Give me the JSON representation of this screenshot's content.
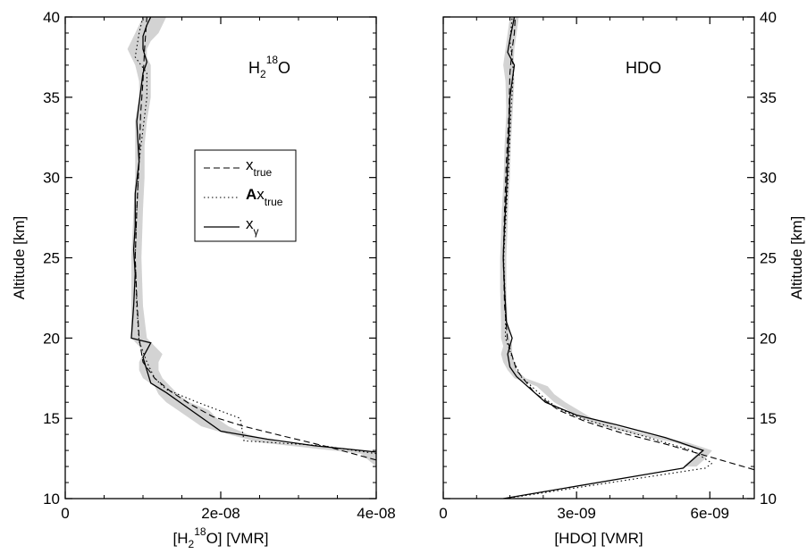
{
  "chart_data": [
    {
      "type": "line",
      "panel_label": {
        "main": "H",
        "sub": "2",
        "sup": "18",
        "tail": "O"
      },
      "xlabel": {
        "pre": "[H",
        "sub": "2",
        "sup": "18",
        "post": "O] [VMR]"
      },
      "ylabel": "Altitude [km]",
      "xlim": [
        0,
        4e-08
      ],
      "ylim": [
        10,
        40
      ],
      "xticks": [
        0,
        2e-08,
        4e-08
      ],
      "xtick_labels": [
        "0",
        "2e-08",
        "4e-08"
      ],
      "yticks": [
        10,
        15,
        20,
        25,
        30,
        35,
        40
      ],
      "ytick_labels": [
        "10",
        "15",
        "20",
        "25",
        "30",
        "35",
        "40"
      ],
      "legend": [
        {
          "name": "x",
          "sub": "true",
          "bold_prefix": "",
          "style": "dashed"
        },
        {
          "name": "x",
          "sub": "true",
          "bold_prefix": "A",
          "style": "dotted"
        },
        {
          "name": "x",
          "sub": "γ",
          "bold_prefix": "",
          "style": "solid"
        }
      ],
      "uncertainty_band": {
        "y": [
          10.5,
          12,
          12.8,
          13.5,
          14,
          14.5,
          15,
          15.5,
          16,
          16.5,
          17,
          17.5,
          18,
          18.5,
          19,
          19.5,
          20,
          22,
          25,
          28,
          30,
          32,
          33.5,
          35,
          36,
          37,
          37.5,
          38,
          38.5,
          39,
          39.5,
          40
        ],
        "lower": [
          4.2e-08,
          4e-08,
          3.8e-08,
          2.5e-08,
          2.1e-08,
          1.75e-08,
          1.6e-08,
          1.45e-08,
          1.3e-08,
          1.2e-08,
          1.15e-08,
          1e-08,
          9.5e-09,
          9.5e-09,
          1e-08,
          9.5e-09,
          8.5e-09,
          8.5e-09,
          8.5e-09,
          8.8e-09,
          9e-09,
          9e-09,
          9e-09,
          9.5e-09,
          9.5e-09,
          9e-09,
          8.5e-09,
          8e-09,
          8.5e-09,
          9e-09,
          9.5e-09,
          1e-08
        ],
        "upper": [
          4.2e-08,
          4.2e-08,
          4.2e-08,
          2.75e-08,
          2.35e-08,
          2.1e-08,
          1.95e-08,
          1.85e-08,
          1.6e-08,
          1.45e-08,
          1.35e-08,
          1.25e-08,
          1.2e-08,
          1.2e-08,
          1.25e-08,
          1.15e-08,
          1.05e-08,
          1e-08,
          9.8e-09,
          1e-08,
          1.02e-08,
          1.02e-08,
          1.05e-08,
          1.1e-08,
          1.1e-08,
          1.1e-08,
          1.05e-08,
          1.05e-08,
          1.1e-08,
          1.2e-08,
          1.25e-08,
          1.3e-08
        ]
      },
      "series": [
        {
          "label": "x_true",
          "style": "dashed",
          "x": [
            4e-08,
            3.4e-08,
            2.8e-08,
            2.3e-08,
            1.9e-08,
            1.6e-08,
            1.35e-08,
            1.15e-08,
            1e-08,
            9.5e-09,
            9.2e-09,
            9e-09,
            9.2e-09,
            9.5e-09,
            9.7e-09,
            1e-08,
            1.02e-08,
            1.05e-08
          ],
          "y": [
            12.4,
            13.2,
            13.9,
            14.5,
            15.1,
            15.9,
            16.7,
            17.5,
            18.5,
            20,
            22.5,
            25,
            28,
            31,
            34,
            36,
            38,
            40
          ]
        },
        {
          "label": "Ax_true",
          "style": "dotted",
          "x": [
            4e-08,
            3.3e-08,
            2.3e-08,
            2.25e-08,
            1.7e-08,
            1.3e-08,
            1.15e-08,
            1.05e-08,
            9.5e-09,
            9.2e-09,
            9e-09,
            9.2e-09,
            9.5e-09,
            1.05e-08,
            1.05e-08,
            9e-09,
            9.5e-09,
            1e-08
          ],
          "y": [
            12.8,
            13.3,
            13.6,
            15.0,
            16.0,
            16.8,
            17.5,
            18.5,
            19.8,
            22,
            25,
            28,
            31,
            35,
            36.5,
            37.5,
            39,
            40
          ]
        },
        {
          "label": "x_gamma",
          "style": "solid",
          "x": [
            4e-08,
            3.2e-08,
            2.6e-08,
            2e-08,
            1.65e-08,
            1.3e-08,
            1.1e-08,
            1.05e-08,
            1e-08,
            1.1e-08,
            8.5e-09,
            8.8e-09,
            9e-09,
            8.8e-09,
            9e-09,
            9e-09,
            9.5e-09,
            9.2e-09,
            9.6e-09,
            1e-08,
            1.05e-08,
            1e-08,
            1e-08,
            1.05e-08,
            1.1e-08
          ],
          "y": [
            12.9,
            13.3,
            13.7,
            14.2,
            15.4,
            16.6,
            17.2,
            18.0,
            18.8,
            19.7,
            20.0,
            22,
            24,
            25.5,
            27,
            29,
            31,
            33.5,
            35,
            36.5,
            37.2,
            38,
            38.8,
            39.5,
            40
          ]
        }
      ]
    },
    {
      "type": "line",
      "panel_label": {
        "main": "HDO"
      },
      "xlabel": {
        "pre": "[HDO] [VMR]"
      },
      "ylabel": "Altitude [km]",
      "xlim": [
        0,
        7e-09
      ],
      "ylim": [
        10,
        40
      ],
      "xticks": [
        0,
        3e-09,
        6e-09
      ],
      "xtick_labels": [
        "0",
        "3e-09",
        "6e-09"
      ],
      "yticks": [
        10,
        15,
        20,
        25,
        30,
        35,
        40
      ],
      "ytick_labels": [
        "10",
        "15",
        "20",
        "25",
        "30",
        "35",
        "40"
      ],
      "uncertainty_band": {
        "y": [
          12,
          12.5,
          13,
          13.5,
          14,
          14.5,
          15,
          15.5,
          16,
          16.5,
          17,
          17.5,
          18,
          18.5,
          19,
          19.5,
          20,
          21,
          23,
          25,
          28,
          30,
          32,
          34,
          36,
          37,
          38,
          39,
          40
        ],
        "lower": [
          5.4e-09,
          5.6e-09,
          5.8e-09,
          5.2e-09,
          4.3e-09,
          3.6e-09,
          3.1e-09,
          2.8e-09,
          2.5e-09,
          2.3e-09,
          2.1e-09,
          1.6e-09,
          1.45e-09,
          1.35e-09,
          1.3e-09,
          1.35e-09,
          1.3e-09,
          1.3e-09,
          1.28e-09,
          1.28e-09,
          1.32e-09,
          1.36e-09,
          1.38e-09,
          1.42e-09,
          1.4e-09,
          1.35e-09,
          1.4e-09,
          1.45e-09,
          1.5e-09
        ],
        "upper": [
          5.7e-09,
          5.9e-09,
          6.05e-09,
          5.5e-09,
          4.6e-09,
          3.9e-09,
          3.35e-09,
          3.05e-09,
          2.75e-09,
          2.5e-09,
          2.35e-09,
          1.85e-09,
          1.65e-09,
          1.6e-09,
          1.55e-09,
          1.55e-09,
          1.5e-09,
          1.45e-09,
          1.42e-09,
          1.42e-09,
          1.46e-09,
          1.5e-09,
          1.52e-09,
          1.56e-09,
          1.6e-09,
          1.58e-09,
          1.6e-09,
          1.65e-09,
          1.7e-09
        ]
      },
      "series": [
        {
          "label": "x_true",
          "style": "dashed",
          "x": [
            7e-09,
            6e-09,
            5e-09,
            4e-09,
            3.2e-09,
            2.6e-09,
            2.05e-09,
            1.65e-09,
            1.45e-09,
            1.38e-09,
            1.35e-09,
            1.38e-09,
            1.42e-09,
            1.48e-09,
            1.5e-09,
            1.55e-09,
            1.6e-09,
            1.62e-09
          ],
          "y": [
            11.8,
            12.6,
            13.4,
            14.1,
            14.8,
            15.5,
            16.6,
            18.0,
            19.8,
            22,
            25,
            28,
            31,
            34,
            36.5,
            38,
            39,
            40
          ]
        },
        {
          "label": "Ax_true",
          "style": "dotted",
          "x": [
            1.4e-09,
            5.9e-09,
            6.05e-09,
            5.6e-09,
            4.5e-09,
            3.6e-09,
            3.1e-09,
            2.6e-09,
            2.3e-09,
            1.75e-09,
            1.55e-09,
            1.4e-09,
            1.4e-09,
            1.36e-09,
            1.42e-09,
            1.48e-09,
            1.52e-09,
            1.58e-09,
            1.55e-09,
            1.5e-09,
            1.55e-09
          ],
          "y": [
            10.0,
            11.9,
            12.2,
            13.0,
            13.9,
            14.6,
            15.0,
            15.6,
            16.2,
            17.6,
            18.8,
            20.0,
            22,
            25,
            28,
            31,
            34,
            36.5,
            37.5,
            38.5,
            40
          ]
        },
        {
          "label": "x_gamma",
          "style": "solid",
          "x": [
            1.35e-09,
            5.4e-09,
            5.85e-09,
            5e-09,
            3.9e-09,
            3e-09,
            2.3e-09,
            1.65e-09,
            1.5e-09,
            1.45e-09,
            1.55e-09,
            1.42e-09,
            1.38e-09,
            1.35e-09,
            1.38e-09,
            1.42e-09,
            1.45e-09,
            1.48e-09,
            1.5e-09,
            1.6e-09,
            1.45e-09,
            1.5e-09,
            1.55e-09,
            1.6e-09
          ],
          "y": [
            10.0,
            11.9,
            13.0,
            13.8,
            14.6,
            15.2,
            16.0,
            17.6,
            18.2,
            19.0,
            20.0,
            21.0,
            23,
            25,
            27,
            29,
            31,
            33,
            35,
            37.0,
            37.8,
            38.6,
            39.3,
            40
          ]
        }
      ]
    }
  ]
}
